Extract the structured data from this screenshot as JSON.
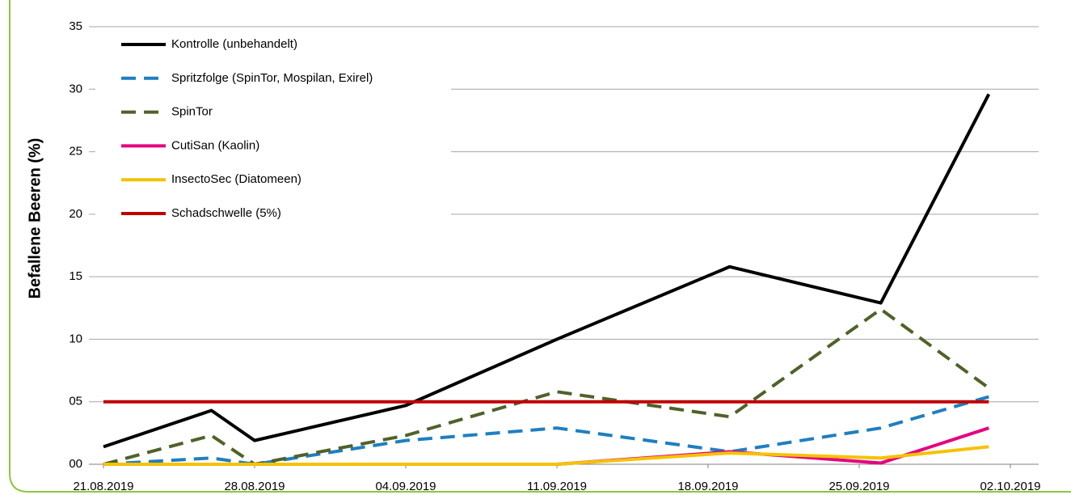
{
  "chart_data": {
    "type": "line",
    "y_label": "Befallene Beeren (%)",
    "x": [
      "2019-08-21",
      "2019-08-26",
      "2019-08-28",
      "2019-09-04",
      "2019-09-11",
      "2019-09-19",
      "2019-09-26",
      "2019-10-01"
    ],
    "series": [
      {
        "name": "Kontrolle (unbehandelt)",
        "color": "#000000",
        "style": "solid",
        "values": [
          1.4,
          4.3,
          1.9,
          4.7,
          10,
          15.8,
          12.9,
          29.6
        ]
      },
      {
        "name": "Spritzfolge (SpinTor, Mospilan, Exirel)",
        "color": "#1f7fc0",
        "style": "dashed",
        "values": [
          0,
          0.5,
          0,
          1.9,
          2.9,
          1.0,
          2.9,
          5.4
        ]
      },
      {
        "name": "SpinTor",
        "color": "#4f6228",
        "style": "dashed",
        "values": [
          0,
          2.3,
          0,
          2.3,
          5.8,
          3.8,
          12.4,
          6.1
        ]
      },
      {
        "name": "CutiSan (Kaolin)",
        "color": "#e6007e",
        "style": "solid",
        "values": [
          0,
          0,
          0,
          0,
          0,
          1.0,
          0.1,
          2.9
        ]
      },
      {
        "name": "InsectoSec (Diatomeen)",
        "color": "#f5c200",
        "style": "solid",
        "values": [
          0,
          0,
          0,
          0,
          0,
          0.9,
          0.5,
          1.4
        ]
      },
      {
        "name": "Schadschwelle (5%)",
        "color": "#c00000",
        "style": "solid",
        "values": [
          5,
          5,
          5,
          5,
          5,
          5,
          5,
          5
        ]
      }
    ],
    "xlim": [
      "2019-08-21",
      "2019-10-02"
    ],
    "xticks": [
      {
        "value": "2019-08-21",
        "label": "21.08.2019"
      },
      {
        "value": "2019-08-28",
        "label": "28.08.2019"
      },
      {
        "value": "2019-09-04",
        "label": "04.09.2019"
      },
      {
        "value": "2019-09-11",
        "label": "11.09.2019"
      },
      {
        "value": "2019-09-18",
        "label": "18.09.2019"
      },
      {
        "value": "2019-09-25",
        "label": "25.09.2019"
      },
      {
        "value": "2019-10-02",
        "label": "02.10.2019"
      }
    ],
    "ylim": [
      0,
      35
    ],
    "yticks": [
      {
        "value": 0,
        "label": "00"
      },
      {
        "value": 5,
        "label": "05"
      },
      10,
      15,
      20,
      25,
      30,
      35
    ],
    "grid": true,
    "legend": "top-left"
  }
}
